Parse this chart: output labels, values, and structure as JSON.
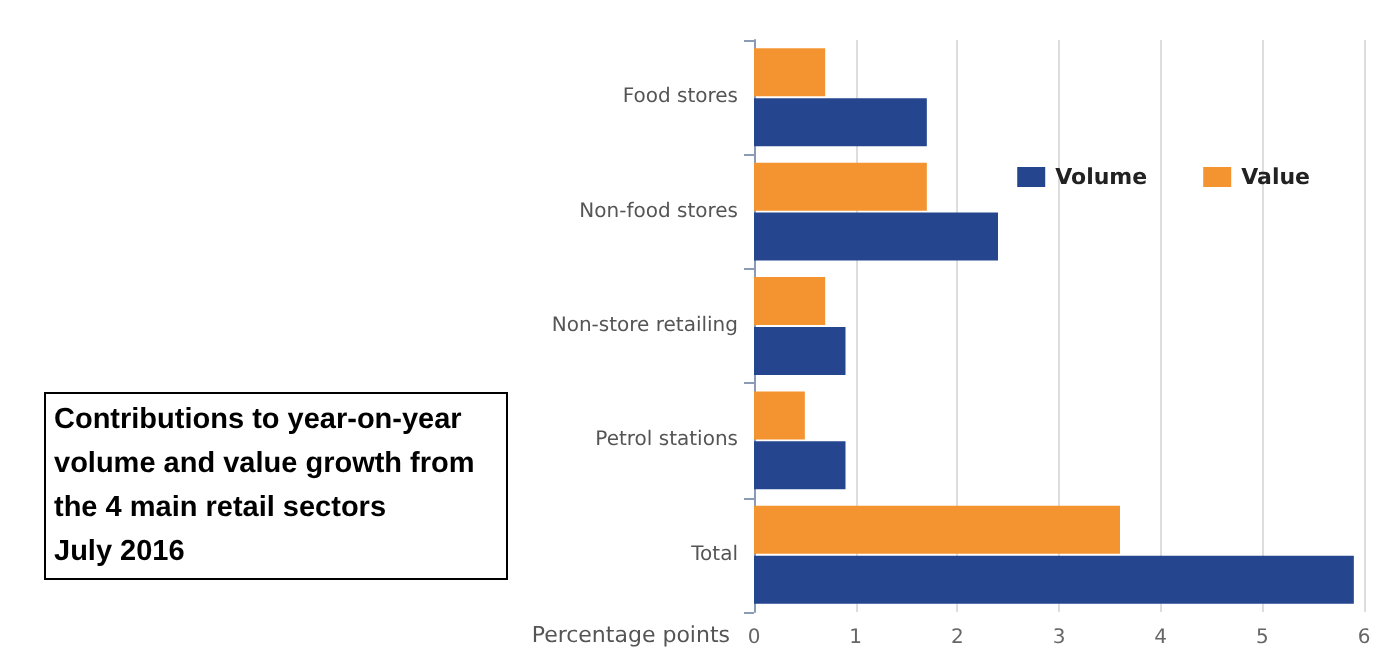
{
  "chart_data": {
    "type": "bar",
    "orientation": "horizontal",
    "title": "Contributions to year-on-year volume and value growth from the 4 main retail sectors",
    "subtitle": "July 2016",
    "xlabel": "Percentage points",
    "categories": [
      "Food stores",
      "Non-food stores",
      "Non-store retailing",
      "Petrol stations",
      "Total"
    ],
    "series": [
      {
        "name": "Volume",
        "color": "#25468f",
        "values": [
          1.7,
          2.4,
          0.9,
          0.9,
          5.9
        ]
      },
      {
        "name": "Value",
        "color": "#f39431",
        "values": [
          0.7,
          1.7,
          0.7,
          0.5,
          3.6
        ]
      }
    ],
    "xlim": [
      0,
      6
    ],
    "xticks": [
      0,
      1,
      2,
      3,
      4,
      5,
      6
    ],
    "grid": "x",
    "legend": "top right"
  }
}
